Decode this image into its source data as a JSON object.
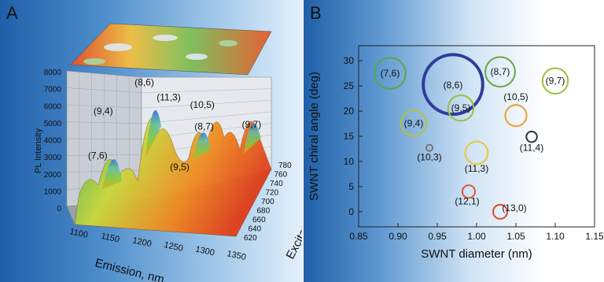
{
  "panel_a": {
    "label": "A",
    "chart_data": {
      "type": "surface",
      "zlabel": "PL Intensity",
      "xlabel": "Emission, nm",
      "ylabel": "Excitation, nm",
      "z_ticks": [
        "0",
        "1000",
        "2000",
        "3000",
        "4000",
        "5000",
        "6000",
        "7000",
        "8000"
      ],
      "x_ticks": [
        "1100",
        "1150",
        "1200",
        "1250",
        "1300",
        "1350"
      ],
      "y_ticks": [
        "620",
        "640",
        "660",
        "680",
        "700",
        "720",
        "740",
        "760",
        "780"
      ],
      "zlim": [
        0,
        8000
      ],
      "xlim": [
        1100,
        1350
      ],
      "ylim": [
        620,
        780
      ],
      "peaks": [
        {
          "label": "(7,6)",
          "emission": 1125,
          "excitation": 650,
          "intensity": 3800
        },
        {
          "label": "(9,4)",
          "emission": 1108,
          "excitation": 725,
          "intensity": 4400
        },
        {
          "label": "(8,6)",
          "emission": 1175,
          "excitation": 720,
          "intensity": 6900
        },
        {
          "label": "(11,3)",
          "emission": 1200,
          "excitation": 760,
          "intensity": 4800
        },
        {
          "label": "(10,5)",
          "emission": 1250,
          "excitation": 770,
          "intensity": 4300
        },
        {
          "label": "(9,5)",
          "emission": 1245,
          "excitation": 680,
          "intensity": 2800
        },
        {
          "label": "(8,7)",
          "emission": 1265,
          "excitation": 735,
          "intensity": 4000
        },
        {
          "label": "(9,7)",
          "emission": 1330,
          "excitation": 765,
          "intensity": 3600
        }
      ]
    }
  },
  "panel_b": {
    "label": "B",
    "chart_data": {
      "type": "scatter",
      "xlabel": "SWNT diameter (nm)",
      "ylabel": "SWNT chiral angle (deg)",
      "xlim": [
        0.85,
        1.15
      ],
      "ylim": [
        -3,
        33
      ],
      "x_ticks": [
        "0.85",
        "0.90",
        "0.95",
        "1.00",
        "1.05",
        "1.10",
        "1.15"
      ],
      "y_ticks": [
        "0",
        "5",
        "10",
        "15",
        "20",
        "25",
        "30"
      ],
      "points": [
        {
          "label": "(7,6)",
          "x": 0.89,
          "y": 27.5,
          "size": 2.2,
          "color": "#55a84a"
        },
        {
          "label": "(8,6)",
          "x": 0.97,
          "y": 25.3,
          "size": 4.2,
          "color": "#2f3c9a"
        },
        {
          "label": "(8,7)",
          "x": 1.03,
          "y": 27.8,
          "size": 2.1,
          "color": "#6aa83c"
        },
        {
          "label": "(9,7)",
          "x": 1.1,
          "y": 26.0,
          "size": 1.8,
          "color": "#9ac03a"
        },
        {
          "label": "(9,5)",
          "x": 0.98,
          "y": 20.6,
          "size": 1.8,
          "color": "#98c03c"
        },
        {
          "label": "(10,5)",
          "x": 1.05,
          "y": 19.1,
          "size": 1.5,
          "color": "#e8a02a"
        },
        {
          "label": "(9,4)",
          "x": 0.92,
          "y": 17.6,
          "size": 1.8,
          "color": "#b3c33a"
        },
        {
          "label": "(10,3)",
          "x": 0.94,
          "y": 12.7,
          "size": 0.45,
          "color": "#777777"
        },
        {
          "label": "(11,4)",
          "x": 1.07,
          "y": 14.9,
          "size": 0.75,
          "color": "#333333"
        },
        {
          "label": "(11,3)",
          "x": 1.0,
          "y": 11.7,
          "size": 1.6,
          "color": "#e8c83a"
        },
        {
          "label": "(12,1)",
          "x": 0.99,
          "y": 4.0,
          "size": 0.9,
          "color": "#dd5a3a"
        },
        {
          "label": "(13,0)",
          "x": 1.03,
          "y": 0.0,
          "size": 1.0,
          "color": "#dd4a2a"
        }
      ]
    }
  }
}
